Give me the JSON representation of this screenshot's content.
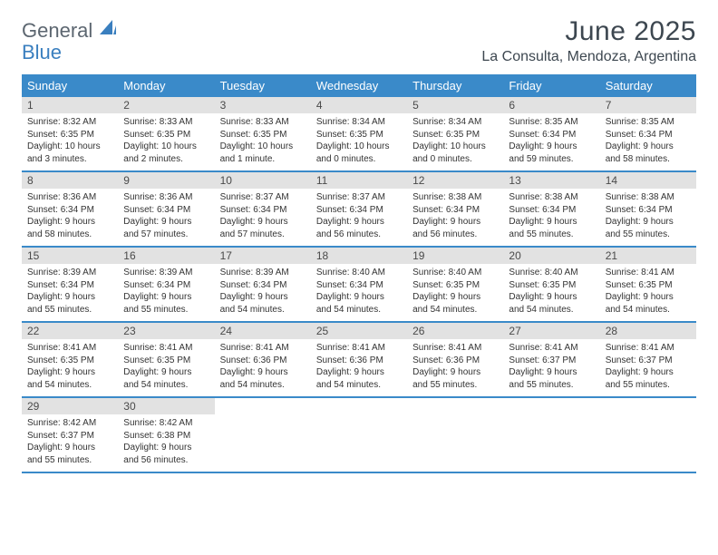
{
  "logo": {
    "line1": "General",
    "line2": "Blue"
  },
  "title": "June 2025",
  "location": "La Consulta, Mendoza, Argentina",
  "colors": {
    "header_bg": "#3a8ac9",
    "header_text": "#ffffff",
    "date_bg": "#e2e2e2",
    "rule": "#3a8ac9",
    "page_bg": "#ffffff",
    "logo_gray": "#5c6670",
    "logo_blue": "#3a7fbf",
    "body_text": "#333333"
  },
  "day_labels": [
    "Sunday",
    "Monday",
    "Tuesday",
    "Wednesday",
    "Thursday",
    "Friday",
    "Saturday"
  ],
  "weeks": [
    [
      {
        "date": "1",
        "sunrise": "Sunrise: 8:32 AM",
        "sunset": "Sunset: 6:35 PM",
        "dl1": "Daylight: 10 hours",
        "dl2": "and 3 minutes."
      },
      {
        "date": "2",
        "sunrise": "Sunrise: 8:33 AM",
        "sunset": "Sunset: 6:35 PM",
        "dl1": "Daylight: 10 hours",
        "dl2": "and 2 minutes."
      },
      {
        "date": "3",
        "sunrise": "Sunrise: 8:33 AM",
        "sunset": "Sunset: 6:35 PM",
        "dl1": "Daylight: 10 hours",
        "dl2": "and 1 minute."
      },
      {
        "date": "4",
        "sunrise": "Sunrise: 8:34 AM",
        "sunset": "Sunset: 6:35 PM",
        "dl1": "Daylight: 10 hours",
        "dl2": "and 0 minutes."
      },
      {
        "date": "5",
        "sunrise": "Sunrise: 8:34 AM",
        "sunset": "Sunset: 6:35 PM",
        "dl1": "Daylight: 10 hours",
        "dl2": "and 0 minutes."
      },
      {
        "date": "6",
        "sunrise": "Sunrise: 8:35 AM",
        "sunset": "Sunset: 6:34 PM",
        "dl1": "Daylight: 9 hours",
        "dl2": "and 59 minutes."
      },
      {
        "date": "7",
        "sunrise": "Sunrise: 8:35 AM",
        "sunset": "Sunset: 6:34 PM",
        "dl1": "Daylight: 9 hours",
        "dl2": "and 58 minutes."
      }
    ],
    [
      {
        "date": "8",
        "sunrise": "Sunrise: 8:36 AM",
        "sunset": "Sunset: 6:34 PM",
        "dl1": "Daylight: 9 hours",
        "dl2": "and 58 minutes."
      },
      {
        "date": "9",
        "sunrise": "Sunrise: 8:36 AM",
        "sunset": "Sunset: 6:34 PM",
        "dl1": "Daylight: 9 hours",
        "dl2": "and 57 minutes."
      },
      {
        "date": "10",
        "sunrise": "Sunrise: 8:37 AM",
        "sunset": "Sunset: 6:34 PM",
        "dl1": "Daylight: 9 hours",
        "dl2": "and 57 minutes."
      },
      {
        "date": "11",
        "sunrise": "Sunrise: 8:37 AM",
        "sunset": "Sunset: 6:34 PM",
        "dl1": "Daylight: 9 hours",
        "dl2": "and 56 minutes."
      },
      {
        "date": "12",
        "sunrise": "Sunrise: 8:38 AM",
        "sunset": "Sunset: 6:34 PM",
        "dl1": "Daylight: 9 hours",
        "dl2": "and 56 minutes."
      },
      {
        "date": "13",
        "sunrise": "Sunrise: 8:38 AM",
        "sunset": "Sunset: 6:34 PM",
        "dl1": "Daylight: 9 hours",
        "dl2": "and 55 minutes."
      },
      {
        "date": "14",
        "sunrise": "Sunrise: 8:38 AM",
        "sunset": "Sunset: 6:34 PM",
        "dl1": "Daylight: 9 hours",
        "dl2": "and 55 minutes."
      }
    ],
    [
      {
        "date": "15",
        "sunrise": "Sunrise: 8:39 AM",
        "sunset": "Sunset: 6:34 PM",
        "dl1": "Daylight: 9 hours",
        "dl2": "and 55 minutes."
      },
      {
        "date": "16",
        "sunrise": "Sunrise: 8:39 AM",
        "sunset": "Sunset: 6:34 PM",
        "dl1": "Daylight: 9 hours",
        "dl2": "and 55 minutes."
      },
      {
        "date": "17",
        "sunrise": "Sunrise: 8:39 AM",
        "sunset": "Sunset: 6:34 PM",
        "dl1": "Daylight: 9 hours",
        "dl2": "and 54 minutes."
      },
      {
        "date": "18",
        "sunrise": "Sunrise: 8:40 AM",
        "sunset": "Sunset: 6:34 PM",
        "dl1": "Daylight: 9 hours",
        "dl2": "and 54 minutes."
      },
      {
        "date": "19",
        "sunrise": "Sunrise: 8:40 AM",
        "sunset": "Sunset: 6:35 PM",
        "dl1": "Daylight: 9 hours",
        "dl2": "and 54 minutes."
      },
      {
        "date": "20",
        "sunrise": "Sunrise: 8:40 AM",
        "sunset": "Sunset: 6:35 PM",
        "dl1": "Daylight: 9 hours",
        "dl2": "and 54 minutes."
      },
      {
        "date": "21",
        "sunrise": "Sunrise: 8:41 AM",
        "sunset": "Sunset: 6:35 PM",
        "dl1": "Daylight: 9 hours",
        "dl2": "and 54 minutes."
      }
    ],
    [
      {
        "date": "22",
        "sunrise": "Sunrise: 8:41 AM",
        "sunset": "Sunset: 6:35 PM",
        "dl1": "Daylight: 9 hours",
        "dl2": "and 54 minutes."
      },
      {
        "date": "23",
        "sunrise": "Sunrise: 8:41 AM",
        "sunset": "Sunset: 6:35 PM",
        "dl1": "Daylight: 9 hours",
        "dl2": "and 54 minutes."
      },
      {
        "date": "24",
        "sunrise": "Sunrise: 8:41 AM",
        "sunset": "Sunset: 6:36 PM",
        "dl1": "Daylight: 9 hours",
        "dl2": "and 54 minutes."
      },
      {
        "date": "25",
        "sunrise": "Sunrise: 8:41 AM",
        "sunset": "Sunset: 6:36 PM",
        "dl1": "Daylight: 9 hours",
        "dl2": "and 54 minutes."
      },
      {
        "date": "26",
        "sunrise": "Sunrise: 8:41 AM",
        "sunset": "Sunset: 6:36 PM",
        "dl1": "Daylight: 9 hours",
        "dl2": "and 55 minutes."
      },
      {
        "date": "27",
        "sunrise": "Sunrise: 8:41 AM",
        "sunset": "Sunset: 6:37 PM",
        "dl1": "Daylight: 9 hours",
        "dl2": "and 55 minutes."
      },
      {
        "date": "28",
        "sunrise": "Sunrise: 8:41 AM",
        "sunset": "Sunset: 6:37 PM",
        "dl1": "Daylight: 9 hours",
        "dl2": "and 55 minutes."
      }
    ],
    [
      {
        "date": "29",
        "sunrise": "Sunrise: 8:42 AM",
        "sunset": "Sunset: 6:37 PM",
        "dl1": "Daylight: 9 hours",
        "dl2": "and 55 minutes."
      },
      {
        "date": "30",
        "sunrise": "Sunrise: 8:42 AM",
        "sunset": "Sunset: 6:38 PM",
        "dl1": "Daylight: 9 hours",
        "dl2": "and 56 minutes."
      },
      null,
      null,
      null,
      null,
      null
    ]
  ]
}
